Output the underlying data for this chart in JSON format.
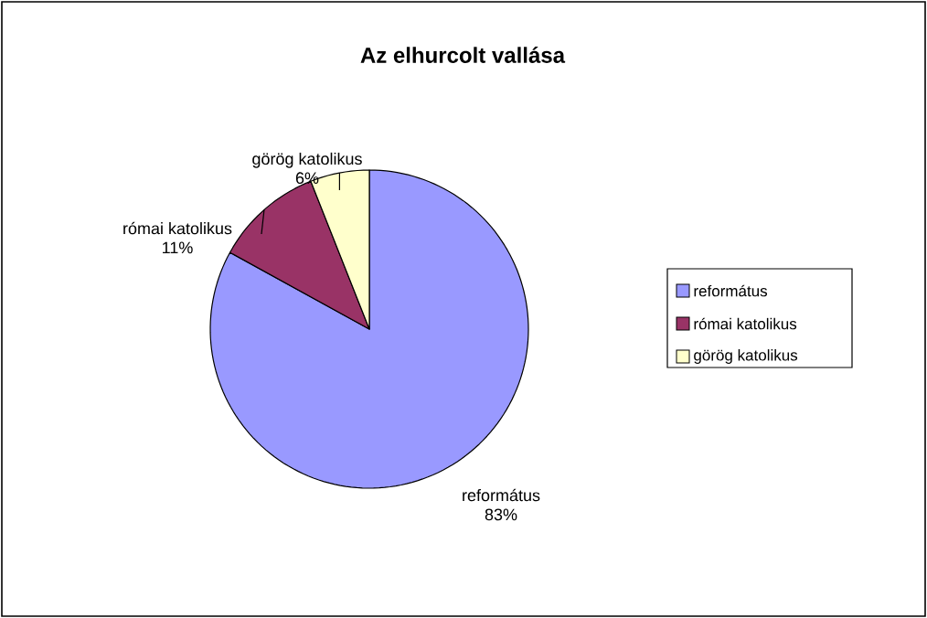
{
  "chart_data": {
    "type": "pie",
    "title": "Az elhurcolt vallása",
    "categories": [
      "református",
      "római katolikus",
      "görög katolikus"
    ],
    "values": [
      83,
      11,
      6
    ],
    "value_labels": [
      "83%",
      "11%",
      "6%"
    ],
    "colors": [
      "#9999ff",
      "#993366",
      "#ffffcc"
    ],
    "legend": "right"
  }
}
